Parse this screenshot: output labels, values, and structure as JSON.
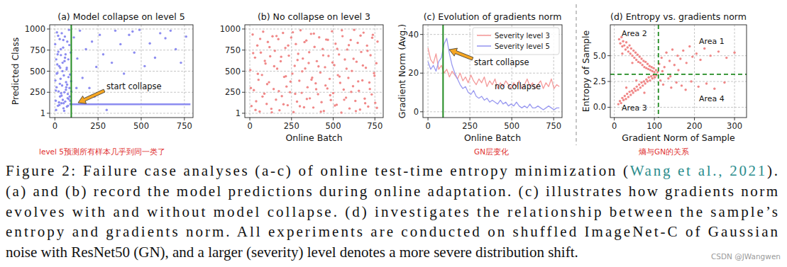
{
  "chart_data": [
    {
      "type": "scatter",
      "title": "(a) Model collapse on level 5",
      "ylabel": "Predicted Class",
      "xlim": [
        -30,
        800
      ],
      "ylim": [
        -50,
        1050
      ],
      "xticks": [
        0,
        250,
        500,
        750
      ],
      "yticks": [
        1,
        250,
        500,
        750,
        1000
      ],
      "grid": true,
      "vline": 95,
      "line_style": "solid",
      "annotations": [
        "start collapse"
      ],
      "series": [
        {
          "color": "#8c8cf0",
          "marker": "circle",
          "x": [
            2,
            5,
            8,
            10,
            12,
            15,
            18,
            20,
            22,
            25,
            28,
            30,
            33,
            35,
            38,
            40,
            42,
            45,
            48,
            50,
            52,
            55,
            58,
            60,
            62,
            65,
            68,
            70,
            72,
            75,
            78,
            80,
            82,
            85,
            88,
            90,
            92,
            95,
            3,
            7,
            14,
            19,
            24,
            29,
            34,
            39,
            44,
            49,
            54,
            59,
            64,
            69,
            74,
            79,
            84,
            89,
            94,
            6,
            16,
            26,
            36,
            46,
            56,
            66,
            76,
            86,
            11,
            31,
            51,
            71,
            110,
            130,
            145,
            160,
            180,
            200,
            215,
            240,
            260,
            280,
            300,
            330,
            350,
            380,
            400,
            430,
            460,
            490,
            520,
            550,
            580,
            610,
            640,
            670,
            700,
            730,
            760,
            125,
            230,
            450
          ],
          "values": [
            820,
            150,
            640,
            310,
            960,
            480,
            90,
            730,
            260,
            560,
            880,
            200,
            410,
            690,
            120,
            950,
            330,
            600,
            780,
            60,
            450,
            250,
            910,
            140,
            700,
            370,
            520,
            80,
            850,
            230,
            640,
            170,
            990,
            300,
            460,
            110,
            720,
            260,
            390,
            40,
            580,
            920,
            130,
            350,
            760,
            210,
            500,
            870,
            30,
            660,
            280,
            540,
            180,
            430,
            810,
            150,
            380,
            270,
            700,
            100,
            240,
            160,
            620,
            310,
            90,
            200,
            470,
            540,
            120,
            340,
            900,
            650,
            980,
            420,
            760,
            300,
            850,
            550,
            930,
            700,
            40,
            600,
            980,
            820,
            470,
            930,
            720,
            990,
            560,
            830,
            660,
            950,
            890,
            980,
            760,
            600,
            910,
            300,
            200,
            970
          ]
        },
        {
          "type": "line",
          "color": "#8c8cf0",
          "x": [
            95,
            785
          ],
          "values": [
            107,
            107
          ]
        }
      ]
    },
    {
      "type": "scatter",
      "title": "(b) No collapse on level 3",
      "xlabel": "Online Batch",
      "xlim": [
        -30,
        800
      ],
      "ylim": [
        -50,
        1050
      ],
      "xticks": [
        0,
        250,
        500,
        750
      ],
      "yticks": [
        1,
        250,
        500,
        750,
        1000
      ],
      "grid": true,
      "series": [
        {
          "color": "#f08888",
          "marker": "circle",
          "x": [
            3,
            10,
            17,
            24,
            31,
            38,
            45,
            52,
            59,
            66,
            73,
            80,
            87,
            94,
            101,
            108,
            115,
            122,
            129,
            136,
            143,
            150,
            157,
            164,
            171,
            178,
            185,
            192,
            199,
            206,
            213,
            220,
            227,
            234,
            241,
            248,
            255,
            262,
            269,
            276,
            283,
            290,
            297,
            304,
            311,
            318,
            325,
            332,
            339,
            346,
            353,
            360,
            367,
            374,
            381,
            388,
            395,
            402,
            409,
            416,
            423,
            430,
            437,
            444,
            451,
            458,
            465,
            472,
            479,
            486,
            493,
            500,
            507,
            514,
            521,
            528,
            535,
            542,
            549,
            556,
            563,
            570,
            577,
            584,
            591,
            598,
            605,
            612,
            619,
            626,
            633,
            640,
            647,
            654,
            661,
            668,
            675,
            682,
            689,
            696,
            703,
            710,
            717,
            724,
            731,
            738,
            745,
            752,
            759,
            766,
            6,
            20,
            34,
            48,
            62,
            76,
            90,
            104,
            118,
            132,
            146,
            160,
            174,
            188,
            202,
            216,
            230,
            244,
            258,
            272,
            286,
            300,
            314,
            328,
            342,
            356,
            370,
            384,
            398,
            412,
            426,
            440,
            454,
            468,
            482,
            496,
            510,
            524,
            538,
            552,
            566,
            580,
            594,
            608,
            622,
            636,
            650,
            664,
            678,
            692,
            706,
            720,
            734,
            748,
            762
          ],
          "values": [
            512,
            87,
            934,
            276,
            661,
            143,
            805,
            398,
            21,
            720,
            455,
            968,
            233,
            590,
            112,
            847,
            369,
            676,
            54,
            913,
            288,
            741,
            162,
            529,
            880,
            37,
            617,
            204,
            953,
            432,
            775,
            318,
            96,
            684,
            251,
            899,
            470,
            15,
            563,
            822,
            139,
            706,
            387,
            985,
            243,
            650,
            72,
            531,
            864,
            310,
            597,
            178,
            942,
            423,
            69,
            788,
            356,
            619,
            227,
            901,
            484,
            133,
            762,
            28,
            547,
            875,
            295,
            680,
            409,
            158,
            973,
            240,
            571,
            826,
            102,
            453,
            698,
            361,
            9,
            915,
            282,
            639,
            186,
            757,
            420,
            58,
            869,
            503,
            321,
            990,
            147,
            612,
            836,
            267,
            44,
            728,
            391,
            957,
            174,
            540,
            803,
            80,
            366,
            689,
            224,
            931,
            477,
            125,
            594,
            851,
            301,
            714,
            40,
            468,
            883,
            199,
            622,
            347,
            786,
            12,
            559,
            917,
            263,
            671,
            108,
            440,
            804,
            376,
            961,
            231,
            632,
            84,
            498,
            845,
            170,
            725,
            399,
            946,
            286,
            557,
            19,
            688,
            331,
            872,
            214,
            603,
            93,
            764,
            436,
            985,
            161,
            529,
            809,
            255,
            647,
            27,
            379,
            922,
            568,
            120,
            742,
            289,
            897,
            446,
            65
          ]
        }
      ]
    },
    {
      "type": "line",
      "title": "(c) Evolution of gradients norm",
      "xlabel": "Online Batch",
      "ylabel": "Gradient Norm (Avg.)",
      "xlim": [
        -30,
        800
      ],
      "ylim": [
        -3,
        45
      ],
      "xticks": [
        0,
        250,
        500,
        750
      ],
      "yticks": [
        0,
        20,
        40
      ],
      "grid": true,
      "legend": "upper right",
      "vline": 90,
      "line_style": "solid",
      "annotations": [
        "start collapse",
        "no collapse"
      ],
      "x": [
        0,
        16,
        32,
        48,
        64,
        80,
        96,
        112,
        128,
        144,
        160,
        176,
        192,
        208,
        224,
        240,
        256,
        272,
        288,
        304,
        320,
        336,
        352,
        368,
        384,
        400,
        416,
        432,
        448,
        464,
        480,
        496,
        512,
        528,
        544,
        560,
        576,
        592,
        608,
        624,
        640,
        656,
        672,
        688,
        704,
        720,
        736,
        752,
        768,
        784
      ],
      "series": [
        {
          "name": "Severity level 3",
          "color": "#f49a9a",
          "values": [
            33,
            27,
            25,
            30,
            22,
            24,
            20,
            22,
            18,
            21,
            19,
            17,
            20,
            16,
            18,
            15,
            19,
            16,
            14,
            17,
            15,
            18,
            13,
            16,
            14,
            17,
            12,
            15,
            13,
            16,
            14,
            12,
            15,
            13,
            16,
            12,
            14,
            17,
            13,
            15,
            12,
            14,
            16,
            12,
            15,
            13,
            17,
            12,
            14,
            13
          ]
        },
        {
          "name": "Severity level 5",
          "color": "#9a9af0",
          "values": [
            26,
            22,
            24,
            21,
            26,
            28,
            35,
            38,
            30,
            24,
            20,
            17,
            14,
            12,
            13,
            10,
            9,
            11,
            8,
            7,
            8,
            6,
            7,
            5,
            6,
            5,
            4,
            6,
            4,
            5,
            3,
            4,
            3,
            5,
            3,
            2,
            3,
            2,
            4,
            2,
            2,
            3,
            2,
            1,
            2,
            3,
            2,
            1,
            2,
            2
          ]
        }
      ]
    },
    {
      "type": "scatter",
      "title": "(d) Entropy vs. gradients norm",
      "xlabel": "Gradient Norm of Sample",
      "ylabel": "Entropy of Sample",
      "xlim": [
        -10,
        330
      ],
      "ylim": [
        -1,
        8
      ],
      "xticks": [
        0,
        100,
        200,
        300
      ],
      "yticks": [
        {
          "value": 0,
          "label": "0.0"
        },
        {
          "value": 2.5,
          "label": "2.5"
        },
        {
          "value": 5,
          "label": "5.0"
        }
      ],
      "grid": true,
      "vline": 110,
      "hline": 3.2,
      "line_style": "dashed",
      "annotations": [
        "Area 1",
        "Area 2",
        "Area 3",
        "Area 4"
      ],
      "series": [
        {
          "color": "#f08888",
          "marker": "circle",
          "x": [
            12,
            15,
            18,
            20,
            22,
            25,
            28,
            30,
            33,
            35,
            38,
            40,
            42,
            45,
            48,
            50,
            53,
            55,
            58,
            60,
            63,
            65,
            68,
            70,
            73,
            75,
            78,
            80,
            83,
            85,
            88,
            90,
            93,
            95,
            98,
            100,
            104,
            108,
            20,
            45,
            10,
            14,
            17,
            20,
            23,
            26,
            29,
            32,
            35,
            38,
            41,
            44,
            47,
            50,
            53,
            56,
            59,
            62,
            65,
            68,
            71,
            74,
            77,
            80,
            83,
            86,
            89,
            92,
            95,
            98,
            101,
            105,
            30,
            55,
            75,
            112,
            118,
            125,
            130,
            138,
            145,
            150,
            158,
            165,
            172,
            180,
            188,
            195,
            205,
            215,
            225,
            240,
            260,
            280,
            300,
            115,
            122,
            135,
            142,
            155,
            168,
            178,
            192,
            210,
            230,
            250,
            275,
            120,
            140,
            160
          ],
          "values": [
            6.6,
            6.2,
            6.8,
            5.9,
            6.4,
            6.0,
            5.6,
            6.3,
            5.8,
            5.4,
            6.0,
            5.2,
            5.7,
            5.0,
            5.5,
            4.8,
            5.3,
            4.6,
            5.1,
            4.4,
            4.9,
            4.3,
            4.7,
            4.1,
            4.5,
            3.9,
            4.4,
            3.8,
            4.2,
            3.7,
            4.0,
            3.6,
            3.9,
            3.5,
            3.8,
            3.4,
            3.6,
            3.4,
            5.2,
            4.3,
            0.3,
            0.6,
            0.4,
            0.9,
            0.7,
            1.1,
            0.8,
            1.3,
            1.0,
            1.5,
            1.2,
            1.6,
            1.4,
            1.8,
            1.6,
            2.0,
            1.7,
            2.2,
            1.9,
            2.4,
            2.1,
            2.5,
            2.3,
            2.7,
            2.5,
            2.9,
            2.6,
            3.0,
            2.8,
            3.1,
            2.9,
            3.1,
            1.9,
            2.6,
            1.4,
            4.2,
            4.8,
            3.9,
            5.3,
            4.5,
            5.6,
            4.1,
            5.0,
            4.7,
            5.5,
            4.3,
            5.9,
            4.9,
            5.2,
            4.6,
            5.7,
            5.0,
            5.4,
            4.8,
            5.3,
            2.6,
            2.2,
            2.8,
            1.9,
            2.4,
            2.1,
            1.7,
            2.5,
            2.0,
            2.3,
            1.8,
            2.4,
            3.5,
            3.0,
            3.6
          ]
        }
      ]
    }
  ],
  "notes": [
    "level 5预测所有样本几乎到同一类了",
    "GN层变化",
    "熵与GN的关系"
  ],
  "caption": {
    "lines": [
      [
        {
          "text": "Figure 2: Failure case analyses (a-c) of online test-time entropy minimization ("
        },
        {
          "text": "Wang et al., 2021",
          "color": "#2a8c8c"
        },
        {
          "text": ")."
        }
      ],
      [
        {
          "text": "(a) and (b) record the model predictions during online adaptation. (c) illustrates how gradients norm"
        }
      ],
      [
        {
          "text": "evolves with and without model collapse. (d) investigates the relationship between the sample’s"
        }
      ],
      [
        {
          "text": "entropy and gradients norm. All experiments are conducted on shuffled ImageNet-C of Gaussian"
        }
      ],
      [
        {
          "text": "noise with ResNet50 (GN), and a larger (severity) level denotes a more severe distribution shift."
        }
      ]
    ]
  },
  "watermark": "CSDN @JWangwen"
}
